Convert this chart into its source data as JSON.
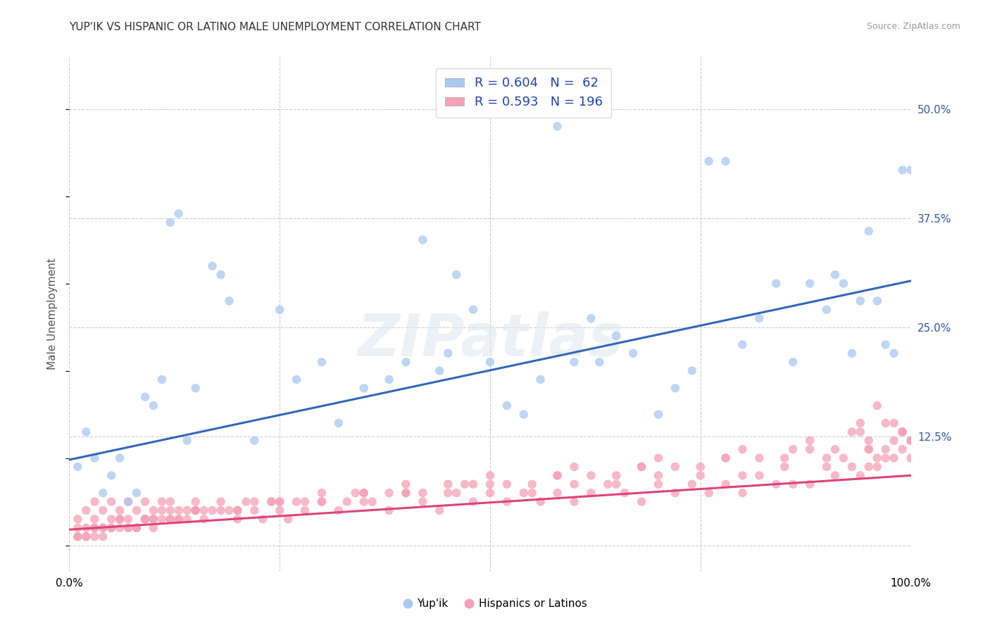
{
  "title": "YUP'IK VS HISPANIC OR LATINO MALE UNEMPLOYMENT CORRELATION CHART",
  "source": "Source: ZipAtlas.com",
  "ylabel": "Male Unemployment",
  "xlim": [
    0.0,
    1.0
  ],
  "ylim": [
    -0.03,
    0.56
  ],
  "xticks": [
    0.0,
    0.25,
    0.5,
    0.75,
    1.0
  ],
  "xticklabels": [
    "0.0%",
    "",
    "",
    "",
    "100.0%"
  ],
  "ytick_positions": [
    0.0,
    0.125,
    0.25,
    0.375,
    0.5
  ],
  "ytick_labels": [
    "",
    "12.5%",
    "25.0%",
    "37.5%",
    "50.0%"
  ],
  "blue_color": "#a8c8f0",
  "pink_color": "#f5a0b8",
  "blue_line_color": "#3366bb",
  "pink_line_color": "#dd4477",
  "legend_label1": "Yup'ik",
  "legend_label2": "Hispanics or Latinos",
  "watermark": "ZIPatlas",
  "background_color": "#ffffff",
  "grid_color": "#cccccc",
  "blue_intercept": 0.098,
  "blue_slope": 0.205,
  "pink_intercept": 0.018,
  "pink_slope": 0.062,
  "blue_scatter_x": [
    0.02,
    0.03,
    0.05,
    0.06,
    0.08,
    0.09,
    0.1,
    0.11,
    0.12,
    0.13,
    0.14,
    0.15,
    0.17,
    0.18,
    0.19,
    0.22,
    0.25,
    0.27,
    0.3,
    0.32,
    0.35,
    0.38,
    0.4,
    0.42,
    0.44,
    0.45,
    0.46,
    0.5,
    0.52,
    0.54,
    0.56,
    0.58,
    0.6,
    0.62,
    0.65,
    0.67,
    0.7,
    0.72,
    0.74,
    0.76,
    0.78,
    0.8,
    0.82,
    0.84,
    0.86,
    0.88,
    0.9,
    0.91,
    0.92,
    0.93,
    0.94,
    0.95,
    0.96,
    0.97,
    0.98,
    0.99,
    1.0,
    0.01,
    0.04,
    0.07,
    0.48,
    0.63
  ],
  "blue_scatter_y": [
    0.13,
    0.1,
    0.08,
    0.1,
    0.06,
    0.17,
    0.16,
    0.19,
    0.37,
    0.38,
    0.12,
    0.18,
    0.32,
    0.31,
    0.28,
    0.12,
    0.27,
    0.19,
    0.21,
    0.14,
    0.18,
    0.19,
    0.21,
    0.35,
    0.2,
    0.22,
    0.31,
    0.21,
    0.16,
    0.15,
    0.19,
    0.48,
    0.21,
    0.26,
    0.24,
    0.22,
    0.15,
    0.18,
    0.2,
    0.44,
    0.44,
    0.23,
    0.26,
    0.3,
    0.21,
    0.3,
    0.27,
    0.31,
    0.3,
    0.22,
    0.28,
    0.36,
    0.28,
    0.23,
    0.22,
    0.43,
    0.43,
    0.09,
    0.06,
    0.05,
    0.27,
    0.21
  ],
  "pink_scatter_x": [
    0.01,
    0.01,
    0.02,
    0.02,
    0.03,
    0.03,
    0.04,
    0.04,
    0.05,
    0.05,
    0.06,
    0.06,
    0.07,
    0.07,
    0.08,
    0.08,
    0.09,
    0.09,
    0.1,
    0.1,
    0.11,
    0.11,
    0.12,
    0.12,
    0.13,
    0.14,
    0.14,
    0.15,
    0.15,
    0.16,
    0.17,
    0.18,
    0.19,
    0.2,
    0.21,
    0.22,
    0.23,
    0.24,
    0.25,
    0.26,
    0.27,
    0.28,
    0.3,
    0.32,
    0.34,
    0.36,
    0.38,
    0.4,
    0.42,
    0.44,
    0.46,
    0.48,
    0.5,
    0.52,
    0.54,
    0.56,
    0.58,
    0.6,
    0.62,
    0.64,
    0.66,
    0.68,
    0.7,
    0.72,
    0.74,
    0.76,
    0.78,
    0.8,
    0.82,
    0.84,
    0.86,
    0.88,
    0.9,
    0.91,
    0.92,
    0.93,
    0.94,
    0.95,
    0.96,
    0.97,
    0.98,
    0.99,
    1.0,
    0.01,
    0.02,
    0.03,
    0.04,
    0.05,
    0.06,
    0.07,
    0.08,
    0.09,
    0.1,
    0.11,
    0.12,
    0.13,
    0.15,
    0.2,
    0.25,
    0.3,
    0.35,
    0.4,
    0.45,
    0.5,
    0.55,
    0.6,
    0.65,
    0.7,
    0.75,
    0.8,
    0.85,
    0.9,
    0.95,
    0.95,
    0.96,
    0.97,
    0.98,
    0.99,
    1.0,
    1.0,
    0.02,
    0.05,
    0.08,
    0.12,
    0.18,
    0.25,
    0.33,
    0.42,
    0.52,
    0.62,
    0.72,
    0.82,
    0.91,
    0.96,
    0.01,
    0.03,
    0.06,
    0.1,
    0.15,
    0.22,
    0.3,
    0.4,
    0.5,
    0.6,
    0.7,
    0.8,
    0.88,
    0.94,
    0.99,
    0.35,
    0.45,
    0.55,
    0.65,
    0.75,
    0.85,
    0.94,
    0.98,
    0.04,
    0.09,
    0.16,
    0.24,
    0.35,
    0.47,
    0.58,
    0.68,
    0.78,
    0.86,
    0.93,
    0.97,
    0.03,
    0.07,
    0.13,
    0.2,
    0.28,
    0.38,
    0.48,
    0.58,
    0.68,
    0.78,
    0.88,
    0.95,
    0.99
  ],
  "pink_scatter_y": [
    0.02,
    0.03,
    0.04,
    0.02,
    0.03,
    0.05,
    0.02,
    0.04,
    0.03,
    0.05,
    0.02,
    0.04,
    0.03,
    0.05,
    0.02,
    0.04,
    0.03,
    0.05,
    0.04,
    0.03,
    0.04,
    0.05,
    0.03,
    0.05,
    0.04,
    0.04,
    0.03,
    0.05,
    0.04,
    0.03,
    0.04,
    0.05,
    0.04,
    0.03,
    0.05,
    0.04,
    0.03,
    0.05,
    0.04,
    0.03,
    0.05,
    0.04,
    0.05,
    0.04,
    0.06,
    0.05,
    0.04,
    0.06,
    0.05,
    0.04,
    0.06,
    0.05,
    0.06,
    0.05,
    0.06,
    0.05,
    0.06,
    0.05,
    0.06,
    0.07,
    0.06,
    0.05,
    0.07,
    0.06,
    0.07,
    0.06,
    0.07,
    0.06,
    0.08,
    0.07,
    0.07,
    0.07,
    0.09,
    0.08,
    0.1,
    0.09,
    0.08,
    0.11,
    0.09,
    0.1,
    0.1,
    0.11,
    0.12,
    0.01,
    0.01,
    0.02,
    0.01,
    0.02,
    0.03,
    0.02,
    0.02,
    0.03,
    0.02,
    0.03,
    0.04,
    0.03,
    0.04,
    0.04,
    0.05,
    0.05,
    0.05,
    0.06,
    0.06,
    0.07,
    0.06,
    0.07,
    0.07,
    0.08,
    0.08,
    0.08,
    0.09,
    0.1,
    0.11,
    0.09,
    0.1,
    0.11,
    0.12,
    0.13,
    0.1,
    0.12,
    0.01,
    0.02,
    0.02,
    0.03,
    0.04,
    0.05,
    0.05,
    0.06,
    0.07,
    0.08,
    0.09,
    0.1,
    0.11,
    0.16,
    0.01,
    0.02,
    0.03,
    0.03,
    0.04,
    0.05,
    0.06,
    0.07,
    0.08,
    0.09,
    0.1,
    0.11,
    0.12,
    0.14,
    0.13,
    0.06,
    0.07,
    0.07,
    0.08,
    0.09,
    0.1,
    0.13,
    0.14,
    0.02,
    0.03,
    0.04,
    0.05,
    0.06,
    0.07,
    0.08,
    0.09,
    0.1,
    0.11,
    0.13,
    0.14,
    0.01,
    0.02,
    0.03,
    0.04,
    0.05,
    0.06,
    0.07,
    0.08,
    0.09,
    0.1,
    0.11,
    0.12,
    0.13
  ]
}
